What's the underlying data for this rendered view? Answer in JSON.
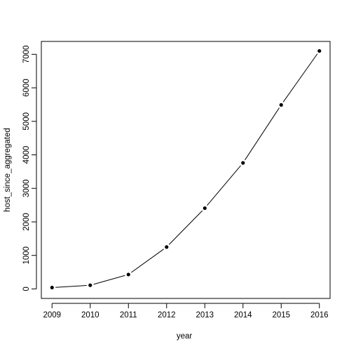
{
  "chart_data": {
    "type": "line",
    "title": "",
    "xlabel": "year",
    "ylabel": "host_since_aggregated",
    "x": [
      2009,
      2010,
      2011,
      2012,
      2013,
      2014,
      2015,
      2016
    ],
    "series": [
      {
        "values": [
          40,
          110,
          430,
          1250,
          2410,
          3760,
          5490,
          7100
        ],
        "color": "#000000"
      }
    ],
    "xlim": [
      2008.72,
      2016.28
    ],
    "ylim": [
      -284,
      7384
    ],
    "x_ticks": [
      2009,
      2010,
      2011,
      2012,
      2013,
      2014,
      2015,
      2016
    ],
    "x_tick_labels": [
      "2009",
      "2010",
      "2011",
      "2012",
      "2013",
      "2014",
      "2015",
      "2016"
    ],
    "y_ticks": [
      0,
      1000,
      2000,
      3000,
      4000,
      5000,
      6000,
      7000
    ],
    "y_tick_labels": [
      "0",
      "1000",
      "2000",
      "3000",
      "4000",
      "5000",
      "6000",
      "7000"
    ],
    "grid": false,
    "legend": "none",
    "marker": "filled-circle",
    "line_style": "solid"
  }
}
